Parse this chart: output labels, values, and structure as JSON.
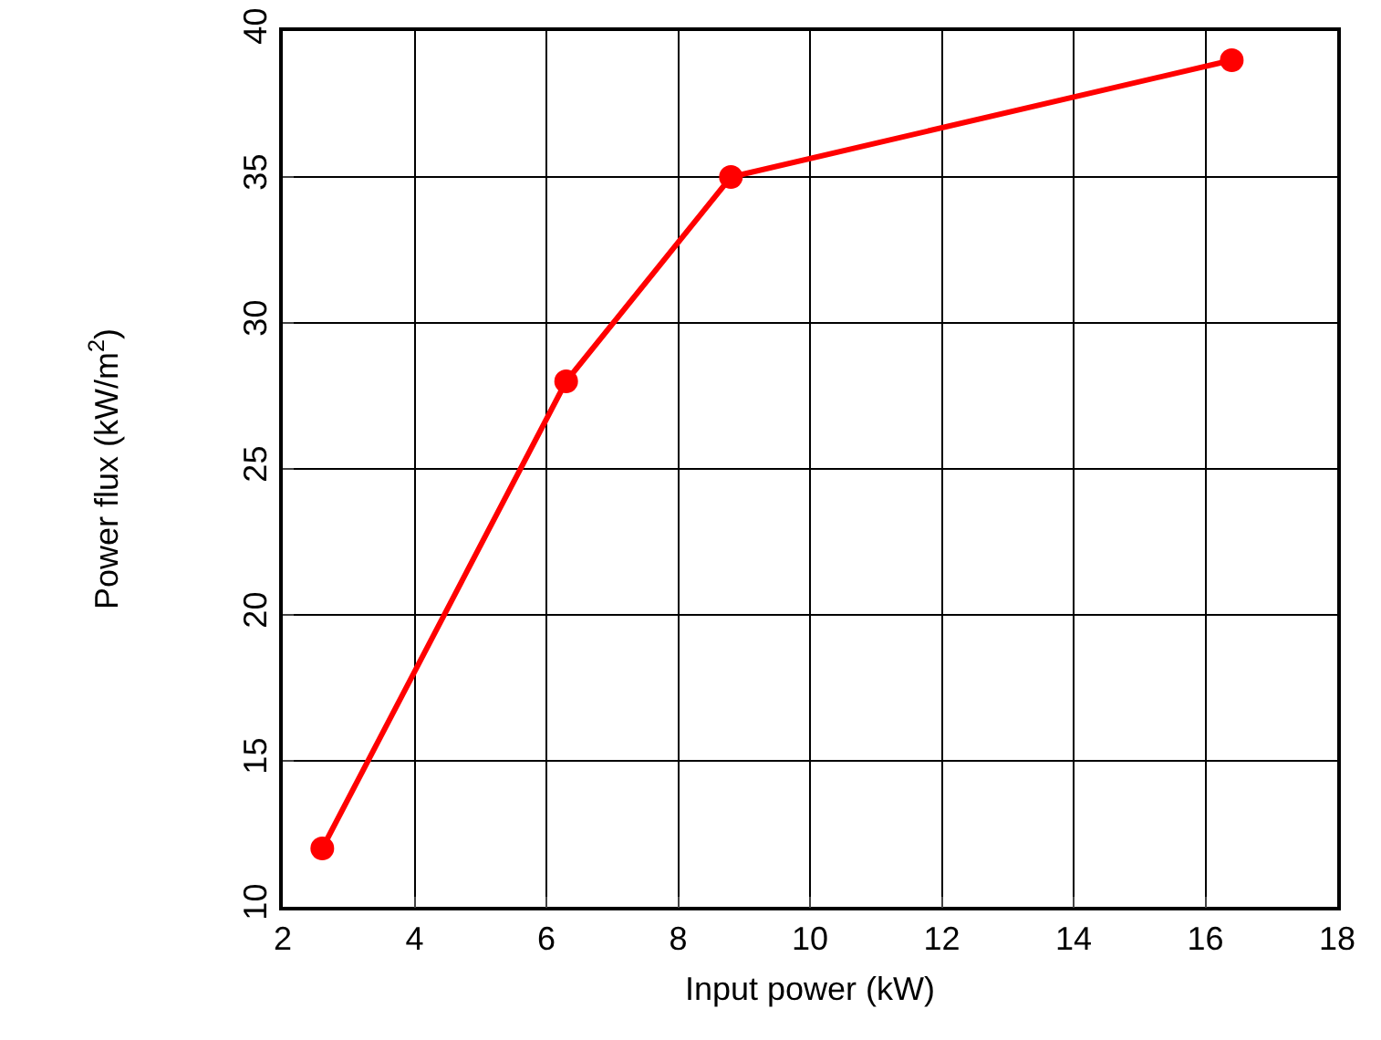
{
  "chart_data": {
    "type": "line",
    "xlabel": "Input power (kW)",
    "ylabel": "Power flux (kW/m$^{2}$)",
    "x": [
      2.6,
      6.3,
      8.8,
      16.4
    ],
    "series": [
      {
        "color": "#ff0000",
        "values": [
          12,
          28,
          35,
          39
        ]
      }
    ],
    "xlim": [
      2,
      18
    ],
    "xticks": [
      2,
      4,
      6,
      8,
      10,
      12,
      14,
      16,
      18
    ],
    "ylim": [
      10,
      40
    ],
    "yticks": [
      10,
      15,
      20,
      25,
      30,
      35,
      40
    ],
    "grid": true,
    "legend": false,
    "marker": "circle",
    "line_style": "solid"
  }
}
